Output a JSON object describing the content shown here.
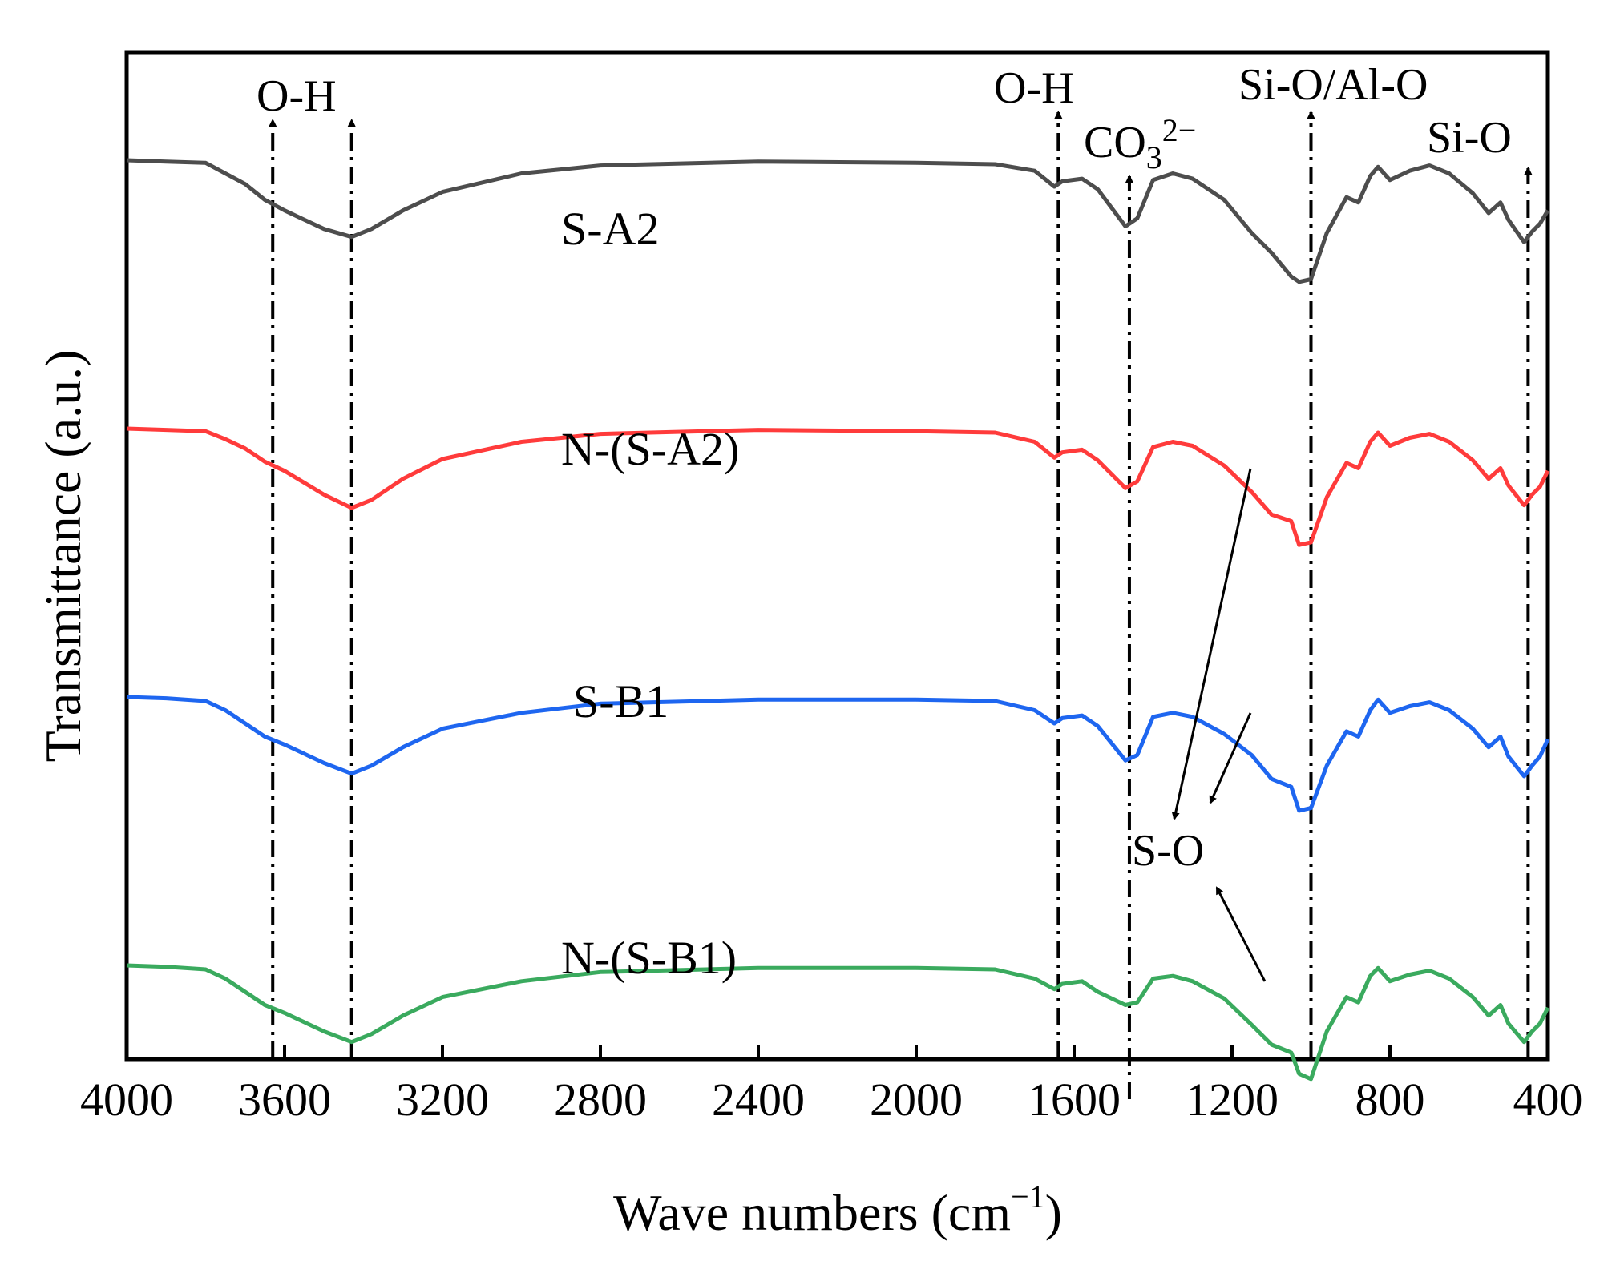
{
  "chart_data": {
    "type": "line",
    "title": "",
    "xlabel": "Wave numbers (cm",
    "xlabel_sup": "−1",
    "xlabel_close": ")",
    "ylabel": "Transmittance (a.u.)",
    "xlim": [
      4000,
      400
    ],
    "xticks": [
      4000,
      3600,
      3200,
      2800,
      2400,
      2000,
      1600,
      1200,
      800,
      400
    ],
    "colors": {
      "S-A2": "#4d4d4d",
      "N-(S-A2)": "#ff3b3b",
      "S-B1": "#1e66f0",
      "N-(S-B1)": "#3aaa5e"
    },
    "series": [
      {
        "name": "S-A2",
        "offset": 0.83,
        "points": [
          [
            4000,
            1.0
          ],
          [
            3900,
            0.99
          ],
          [
            3800,
            0.98
          ],
          [
            3750,
            0.9
          ],
          [
            3700,
            0.82
          ],
          [
            3650,
            0.7
          ],
          [
            3600,
            0.62
          ],
          [
            3500,
            0.48
          ],
          [
            3430,
            0.42
          ],
          [
            3380,
            0.48
          ],
          [
            3300,
            0.62
          ],
          [
            3200,
            0.76
          ],
          [
            3000,
            0.9
          ],
          [
            2800,
            0.96
          ],
          [
            2400,
            0.99
          ],
          [
            2000,
            0.98
          ],
          [
            1800,
            0.97
          ],
          [
            1700,
            0.92
          ],
          [
            1650,
            0.8
          ],
          [
            1630,
            0.84
          ],
          [
            1580,
            0.86
          ],
          [
            1540,
            0.78
          ],
          [
            1470,
            0.5
          ],
          [
            1440,
            0.56
          ],
          [
            1400,
            0.85
          ],
          [
            1350,
            0.9
          ],
          [
            1300,
            0.86
          ],
          [
            1220,
            0.7
          ],
          [
            1150,
            0.45
          ],
          [
            1100,
            0.3
          ],
          [
            1050,
            0.12
          ],
          [
            1030,
            0.08
          ],
          [
            1000,
            0.1
          ],
          [
            960,
            0.45
          ],
          [
            910,
            0.72
          ],
          [
            880,
            0.68
          ],
          [
            850,
            0.88
          ],
          [
            830,
            0.95
          ],
          [
            800,
            0.85
          ],
          [
            750,
            0.92
          ],
          [
            700,
            0.96
          ],
          [
            650,
            0.9
          ],
          [
            590,
            0.75
          ],
          [
            550,
            0.6
          ],
          [
            520,
            0.68
          ],
          [
            500,
            0.55
          ],
          [
            460,
            0.38
          ],
          [
            440,
            0.46
          ],
          [
            420,
            0.52
          ],
          [
            400,
            0.62
          ]
        ]
      },
      {
        "name": "N-(S-A2)",
        "offset": 0.52,
        "points": [
          [
            4000,
            1.0
          ],
          [
            3900,
            0.99
          ],
          [
            3800,
            0.98
          ],
          [
            3750,
            0.92
          ],
          [
            3700,
            0.85
          ],
          [
            3650,
            0.75
          ],
          [
            3600,
            0.68
          ],
          [
            3500,
            0.5
          ],
          [
            3430,
            0.4
          ],
          [
            3380,
            0.46
          ],
          [
            3300,
            0.62
          ],
          [
            3200,
            0.77
          ],
          [
            3000,
            0.9
          ],
          [
            2800,
            0.96
          ],
          [
            2400,
            0.99
          ],
          [
            2000,
            0.98
          ],
          [
            1800,
            0.97
          ],
          [
            1700,
            0.9
          ],
          [
            1650,
            0.78
          ],
          [
            1630,
            0.82
          ],
          [
            1580,
            0.84
          ],
          [
            1540,
            0.76
          ],
          [
            1470,
            0.55
          ],
          [
            1440,
            0.6
          ],
          [
            1400,
            0.86
          ],
          [
            1350,
            0.9
          ],
          [
            1300,
            0.87
          ],
          [
            1220,
            0.72
          ],
          [
            1150,
            0.52
          ],
          [
            1100,
            0.35
          ],
          [
            1050,
            0.3
          ],
          [
            1030,
            0.12
          ],
          [
            1000,
            0.14
          ],
          [
            960,
            0.48
          ],
          [
            910,
            0.74
          ],
          [
            880,
            0.7
          ],
          [
            850,
            0.9
          ],
          [
            830,
            0.97
          ],
          [
            800,
            0.87
          ],
          [
            750,
            0.93
          ],
          [
            700,
            0.96
          ],
          [
            650,
            0.9
          ],
          [
            590,
            0.76
          ],
          [
            550,
            0.62
          ],
          [
            520,
            0.7
          ],
          [
            500,
            0.57
          ],
          [
            460,
            0.42
          ],
          [
            440,
            0.5
          ],
          [
            420,
            0.56
          ],
          [
            400,
            0.68
          ]
        ]
      },
      {
        "name": "S-B1",
        "offset": 0.25,
        "points": [
          [
            4000,
            1.0
          ],
          [
            3900,
            0.99
          ],
          [
            3800,
            0.97
          ],
          [
            3750,
            0.9
          ],
          [
            3700,
            0.8
          ],
          [
            3650,
            0.7
          ],
          [
            3600,
            0.64
          ],
          [
            3500,
            0.5
          ],
          [
            3430,
            0.42
          ],
          [
            3380,
            0.48
          ],
          [
            3300,
            0.62
          ],
          [
            3200,
            0.76
          ],
          [
            3000,
            0.88
          ],
          [
            2800,
            0.95
          ],
          [
            2400,
            0.98
          ],
          [
            2000,
            0.98
          ],
          [
            1800,
            0.97
          ],
          [
            1700,
            0.9
          ],
          [
            1650,
            0.8
          ],
          [
            1630,
            0.84
          ],
          [
            1580,
            0.86
          ],
          [
            1540,
            0.78
          ],
          [
            1470,
            0.52
          ],
          [
            1440,
            0.56
          ],
          [
            1400,
            0.85
          ],
          [
            1350,
            0.88
          ],
          [
            1300,
            0.85
          ],
          [
            1220,
            0.72
          ],
          [
            1150,
            0.56
          ],
          [
            1100,
            0.38
          ],
          [
            1050,
            0.32
          ],
          [
            1030,
            0.14
          ],
          [
            1000,
            0.16
          ],
          [
            960,
            0.48
          ],
          [
            910,
            0.74
          ],
          [
            880,
            0.7
          ],
          [
            850,
            0.9
          ],
          [
            830,
            0.98
          ],
          [
            800,
            0.88
          ],
          [
            750,
            0.93
          ],
          [
            700,
            0.96
          ],
          [
            650,
            0.9
          ],
          [
            590,
            0.76
          ],
          [
            550,
            0.62
          ],
          [
            520,
            0.7
          ],
          [
            500,
            0.55
          ],
          [
            460,
            0.4
          ],
          [
            440,
            0.48
          ],
          [
            420,
            0.55
          ],
          [
            400,
            0.68
          ]
        ]
      },
      {
        "name": "N-(S-B1)",
        "offset": 0.0,
        "points": [
          [
            4000,
            1.0
          ],
          [
            3900,
            0.99
          ],
          [
            3800,
            0.97
          ],
          [
            3750,
            0.9
          ],
          [
            3700,
            0.8
          ],
          [
            3650,
            0.7
          ],
          [
            3600,
            0.64
          ],
          [
            3500,
            0.5
          ],
          [
            3430,
            0.42
          ],
          [
            3380,
            0.48
          ],
          [
            3300,
            0.62
          ],
          [
            3200,
            0.76
          ],
          [
            3000,
            0.88
          ],
          [
            2800,
            0.95
          ],
          [
            2400,
            0.98
          ],
          [
            2000,
            0.98
          ],
          [
            1800,
            0.97
          ],
          [
            1700,
            0.9
          ],
          [
            1650,
            0.82
          ],
          [
            1630,
            0.86
          ],
          [
            1580,
            0.88
          ],
          [
            1540,
            0.8
          ],
          [
            1470,
            0.7
          ],
          [
            1440,
            0.72
          ],
          [
            1400,
            0.9
          ],
          [
            1350,
            0.92
          ],
          [
            1300,
            0.88
          ],
          [
            1220,
            0.75
          ],
          [
            1150,
            0.55
          ],
          [
            1100,
            0.4
          ],
          [
            1050,
            0.34
          ],
          [
            1030,
            0.18
          ],
          [
            1000,
            0.14
          ],
          [
            960,
            0.5
          ],
          [
            910,
            0.76
          ],
          [
            880,
            0.72
          ],
          [
            850,
            0.92
          ],
          [
            830,
            0.98
          ],
          [
            800,
            0.88
          ],
          [
            750,
            0.93
          ],
          [
            700,
            0.96
          ],
          [
            650,
            0.9
          ],
          [
            590,
            0.76
          ],
          [
            550,
            0.62
          ],
          [
            520,
            0.7
          ],
          [
            500,
            0.56
          ],
          [
            460,
            0.42
          ],
          [
            440,
            0.5
          ],
          [
            420,
            0.56
          ],
          [
            400,
            0.68
          ]
        ]
      }
    ],
    "series_labels": [
      "S-A2",
      "N-(S-A2)",
      "S-B1",
      "N-(S-B1)"
    ],
    "band_lines": [
      3630,
      3430,
      1640,
      1460,
      1000,
      450
    ],
    "annotations": {
      "oh_left": "O-H",
      "oh_right": "O-H",
      "co3_base": "CO",
      "co3_sub": "3",
      "co3_sup": "2−",
      "sio_alo": "Si-O/Al-O",
      "sio": "Si-O",
      "so": "S-O"
    }
  }
}
